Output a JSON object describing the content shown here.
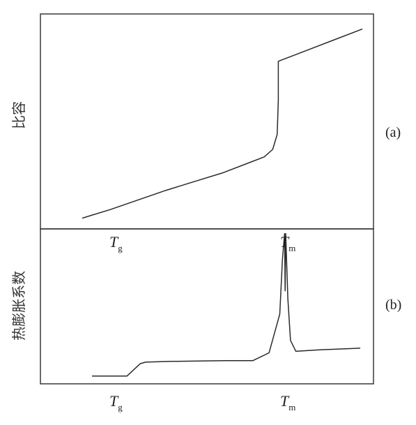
{
  "chart_data": [
    {
      "type": "line",
      "panel_label": "(a)",
      "ylabel": "比容",
      "xlabel": "",
      "x_markers": [
        {
          "symbol": "T",
          "subscript": "g"
        },
        {
          "symbol": "T",
          "subscript": "m"
        }
      ],
      "series": [
        {
          "x": [
            0.0,
            0.1,
            0.2,
            0.3,
            0.4,
            0.5,
            0.6,
            0.65,
            0.68,
            0.696,
            0.7,
            0.7,
            0.8,
            0.9,
            1.0
          ],
          "y": [
            0.05,
            0.09,
            0.135,
            0.18,
            0.22,
            0.26,
            0.31,
            0.335,
            0.37,
            0.44,
            0.6,
            0.78,
            0.83,
            0.88,
            0.93
          ]
        }
      ],
      "grid": false
    },
    {
      "type": "line",
      "panel_label": "(b)",
      "ylabel": "热膨胀系数",
      "xlabel": "",
      "x_markers": [
        {
          "symbol": "T",
          "subscript": "g"
        },
        {
          "symbol": "T",
          "subscript": "m"
        }
      ],
      "series": [
        {
          "x": [
            0.0,
            0.13,
            0.18,
            0.2,
            0.3,
            0.5,
            0.6,
            0.66,
            0.7,
            0.71,
            0.718,
            0.72,
            0.722,
            0.73,
            0.74,
            0.76,
            0.85,
            1.0
          ],
          "y": [
            0.05,
            0.05,
            0.13,
            0.14,
            0.145,
            0.15,
            0.15,
            0.2,
            0.45,
            0.8,
            0.97,
            0.6,
            0.97,
            0.55,
            0.28,
            0.21,
            0.22,
            0.23
          ]
        }
      ],
      "grid": false
    }
  ]
}
